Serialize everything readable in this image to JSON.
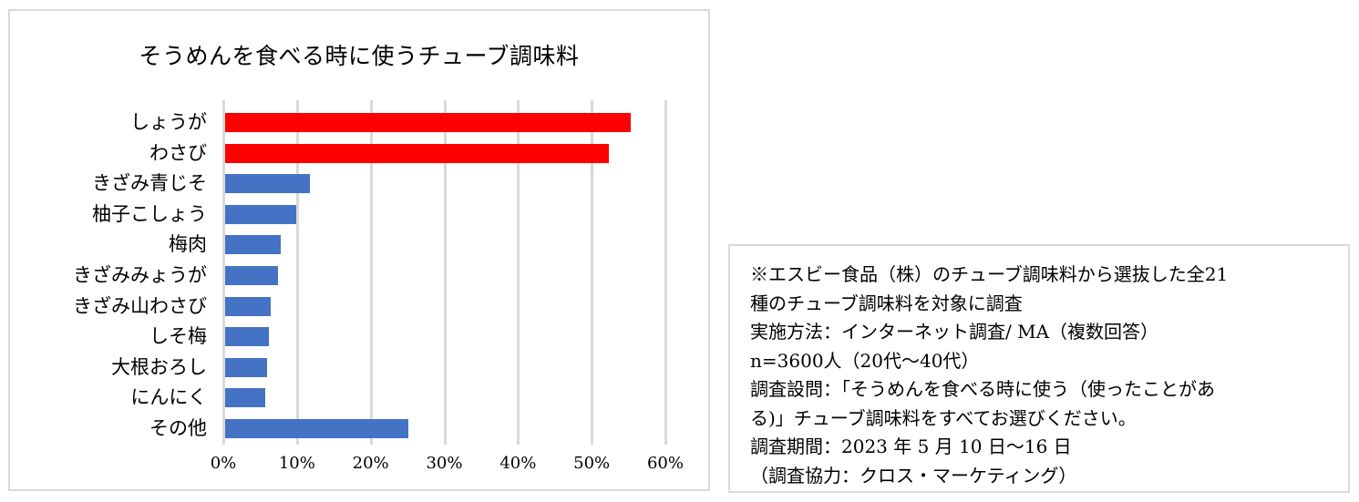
{
  "chart_data": {
    "type": "bar",
    "orientation": "horizontal",
    "title": "そうめんを食べる時に使うチューブ調味料",
    "xlabel": "",
    "ylabel": "",
    "xlim": [
      0,
      60
    ],
    "x_ticks": [
      "0%",
      "10%",
      "20%",
      "30%",
      "40%",
      "50%",
      "60%"
    ],
    "grid": true,
    "legend": null,
    "categories": [
      "しょうが",
      "わさび",
      "きざみ青じそ",
      "柚子こしょう",
      "梅肉",
      "きざみみょうが",
      "きざみ山わさび",
      "しそ梅",
      "大根おろし",
      "にんにく",
      "その他"
    ],
    "values": [
      55.0,
      52.1,
      11.5,
      9.7,
      7.5,
      7.2,
      6.2,
      5.9,
      5.7,
      5.4,
      24.9
    ],
    "unit": "%",
    "bar_colors": [
      "#ff0000",
      "#ff0000",
      "#4472c4",
      "#4472c4",
      "#4472c4",
      "#4472c4",
      "#4472c4",
      "#4472c4",
      "#4472c4",
      "#4472c4",
      "#4472c4"
    ]
  },
  "colors": {
    "highlight": "#ff0000",
    "default_bar": "#4472c4",
    "gridline": "#d9d9d9",
    "frame": "#d9d9d9"
  },
  "note": {
    "lines": [
      "※エスビー食品（株）のチューブ調味料から選抜した全21",
      "種のチューブ調味料を対象に調査",
      "実施方法：インターネット調査/ MA（複数回答）",
      "n=3600人（20代〜40代）",
      "調査設問：「そうめんを食べる時に使う（使ったことがあ",
      "る)」チューブ調味料をすべてお選びください。",
      "調査期間：2023 年 5 月 10 日〜16 日",
      "（調査協力：クロス・マーケティング）"
    ]
  }
}
